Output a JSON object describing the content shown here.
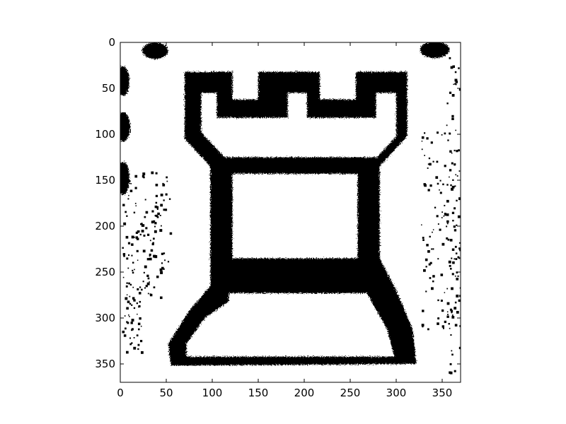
{
  "figure": {
    "kind": "binarized-image-plot",
    "subject": "rook-chess-piece",
    "image_size": [
      370,
      370
    ],
    "colors": {
      "background": "#ffffff",
      "foreground": "#000000"
    }
  },
  "axes": {
    "x_range": [
      0,
      370
    ],
    "y_range": [
      0,
      370
    ],
    "y_inverted": true,
    "x_ticks": [
      {
        "value": 0,
        "label": "0"
      },
      {
        "value": 50,
        "label": "50"
      },
      {
        "value": 100,
        "label": "100"
      },
      {
        "value": 150,
        "label": "150"
      },
      {
        "value": 200,
        "label": "200"
      },
      {
        "value": 250,
        "label": "250"
      },
      {
        "value": 300,
        "label": "300"
      },
      {
        "value": 350,
        "label": "350"
      }
    ],
    "y_ticks": [
      {
        "value": 0,
        "label": "0"
      },
      {
        "value": 50,
        "label": "50"
      },
      {
        "value": 100,
        "label": "100"
      },
      {
        "value": 150,
        "label": "150"
      },
      {
        "value": 200,
        "label": "200"
      },
      {
        "value": 250,
        "label": "250"
      },
      {
        "value": 300,
        "label": "300"
      },
      {
        "value": 350,
        "label": "350"
      }
    ]
  }
}
